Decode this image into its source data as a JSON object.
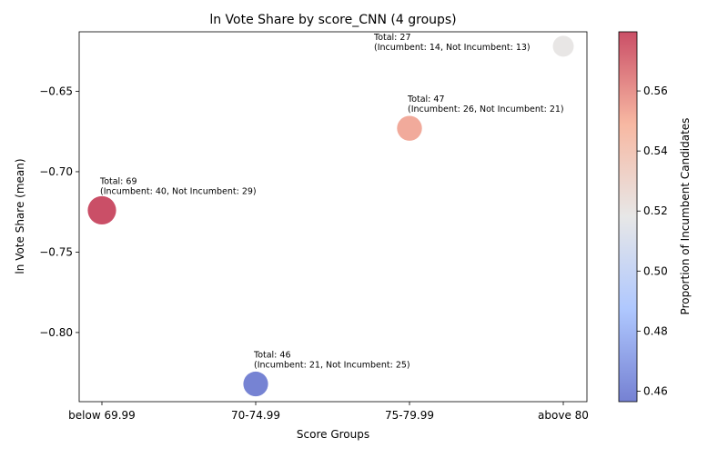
{
  "chart_data": {
    "type": "scatter",
    "title": "ln Vote Share by score_CNN (4 groups)",
    "xlabel": "Score Groups",
    "ylabel": "ln Vote Share (mean)",
    "categories": [
      "below 69.99",
      "70-74.99",
      "75-79.99",
      "above 80"
    ],
    "ylim": [
      -0.843,
      -0.613
    ],
    "yticks": [
      -0.65,
      -0.7,
      -0.75,
      -0.8
    ],
    "ytick_labels": [
      "−0.65",
      "−0.70",
      "−0.75",
      "−0.80"
    ],
    "grid": false,
    "points": [
      {
        "category": "below 69.99",
        "y": -0.724,
        "total": 69,
        "incumbent": 40,
        "not_incumbent": 29,
        "proportion": 0.58,
        "annotation_line1": "Total: 69",
        "annotation_line2": "(Incumbent: 40, Not Incumbent: 29)"
      },
      {
        "category": "70-74.99",
        "y": -0.832,
        "total": 46,
        "incumbent": 21,
        "not_incumbent": 25,
        "proportion": 0.457,
        "annotation_line1": "Total: 46",
        "annotation_line2": "(Incumbent: 21, Not Incumbent: 25)"
      },
      {
        "category": "75-79.99",
        "y": -0.673,
        "total": 47,
        "incumbent": 26,
        "not_incumbent": 21,
        "proportion": 0.553,
        "annotation_line1": "Total: 47",
        "annotation_line2": "(Incumbent: 26, Not Incumbent: 21)"
      },
      {
        "category": "above 80",
        "y": -0.622,
        "total": 27,
        "incumbent": 14,
        "not_incumbent": 13,
        "proportion": 0.519,
        "annotation_line1": "Total: 27",
        "annotation_line2": "(Incumbent: 14, Not Incumbent: 13)"
      }
    ],
    "colorbar": {
      "label": "Proportion of Incumbent Candidates",
      "range": [
        0.4565,
        0.5797
      ],
      "colormap": "coolwarm",
      "ticks": [
        0.46,
        0.48,
        0.5,
        0.52,
        0.54,
        0.56
      ],
      "tick_labels": [
        "0.46",
        "0.48",
        "0.50",
        "0.52",
        "0.54",
        "0.56"
      ]
    },
    "marker_alpha": 0.7
  }
}
